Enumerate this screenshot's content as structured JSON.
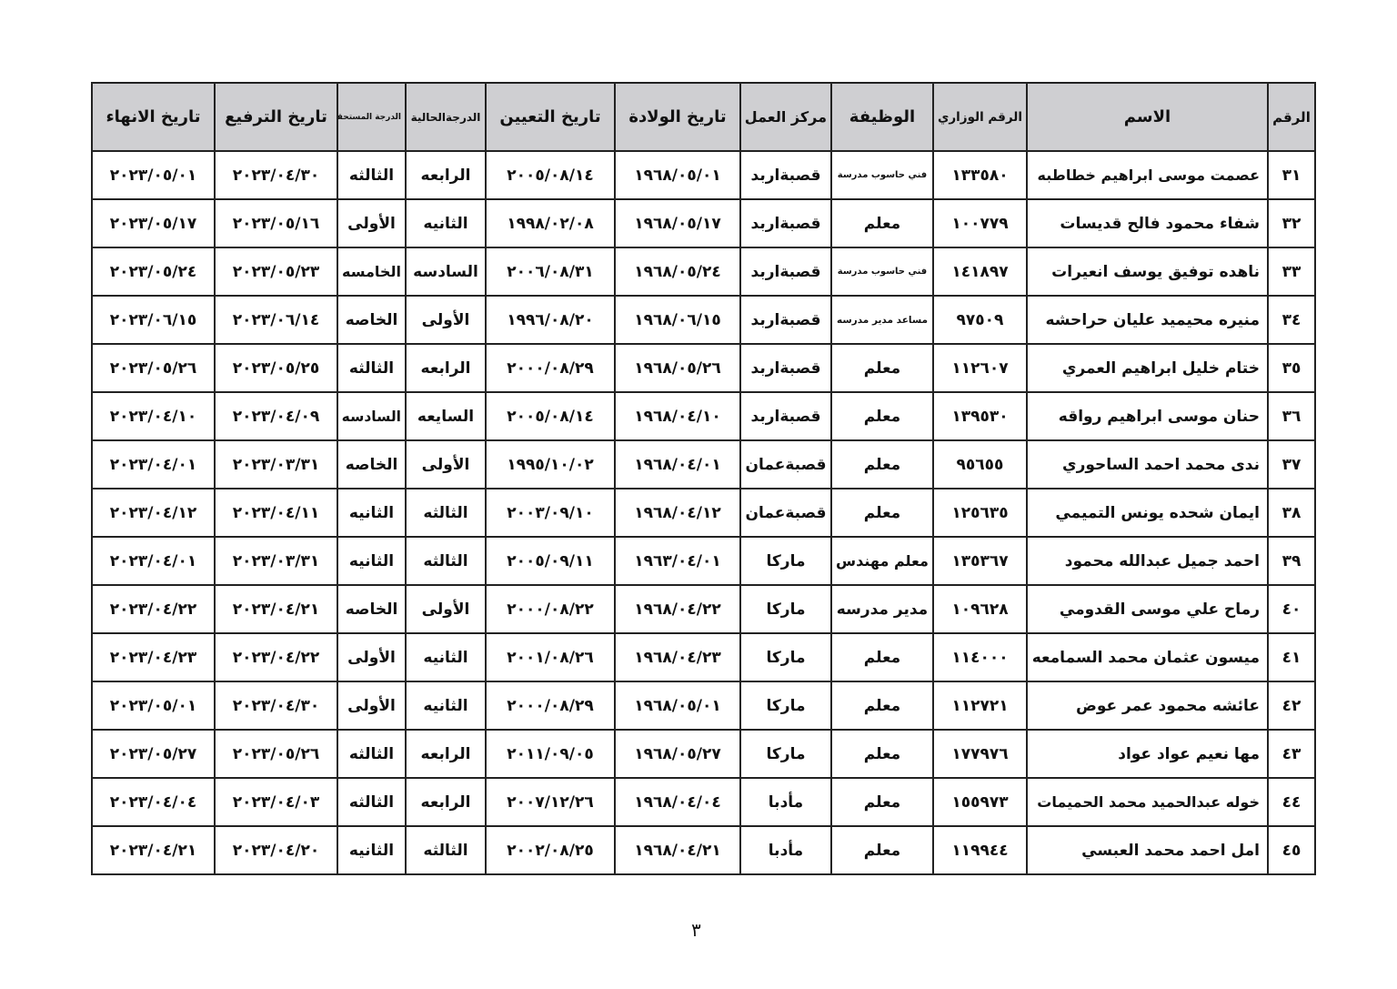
{
  "table": {
    "headers": [
      "الرقم",
      "الاسم",
      "الرقم الوزاري",
      "الوظيفة",
      "مركز العمل",
      "تاريخ الولادة",
      "تاريخ التعيين",
      "الدرجةالحالية",
      "الدرجة المستحقة",
      "تاريخ الترفيع",
      "تاريخ الانهاء"
    ],
    "rows": [
      [
        "٣١",
        "عصمت موسى ابراهيم خطاطبه",
        "١٣٣٥٨٠",
        "فني حاسوب مدرسة",
        "قصبةاربد",
        "١٩٦٨/٠٥/٠١",
        "٢٠٠٥/٠٨/١٤",
        "الرابعه",
        "الثالثه",
        "٢٠٢٣/٠٤/٣٠",
        "٢٠٢٣/٠٥/٠١"
      ],
      [
        "٣٢",
        "شفاء محمود فالح قديسات",
        "١٠٠٧٧٩",
        "معلم",
        "قصبةاربد",
        "١٩٦٨/٠٥/١٧",
        "١٩٩٨/٠٢/٠٨",
        "الثانيه",
        "الأولى",
        "٢٠٢٣/٠٥/١٦",
        "٢٠٢٣/٠٥/١٧"
      ],
      [
        "٣٣",
        "ناهده توفيق يوسف انعيرات",
        "١٤١٨٩٧",
        "فني حاسوب مدرسة",
        "قصبةاربد",
        "١٩٦٨/٠٥/٢٤",
        "٢٠٠٦/٠٨/٣١",
        "السادسه",
        "الخامسه",
        "٢٠٢٣/٠٥/٢٣",
        "٢٠٢٣/٠٥/٢٤"
      ],
      [
        "٣٤",
        "منيره محيميد عليان حراحشه",
        "٩٧٥٠٩",
        "مساعد مدير مدرسه",
        "قصبةاربد",
        "١٩٦٨/٠٦/١٥",
        "١٩٩٦/٠٨/٢٠",
        "الأولى",
        "الخاصه",
        "٢٠٢٣/٠٦/١٤",
        "٢٠٢٣/٠٦/١٥"
      ],
      [
        "٣٥",
        "ختام خليل ابراهيم العمري",
        "١١٢٦٠٧",
        "معلم",
        "قصبةاربد",
        "١٩٦٨/٠٥/٢٦",
        "٢٠٠٠/٠٨/٢٩",
        "الرابعه",
        "الثالثه",
        "٢٠٢٣/٠٥/٢٥",
        "٢٠٢٣/٠٥/٢٦"
      ],
      [
        "٣٦",
        "حنان موسى ابراهيم رواقه",
        "١٣٩٥٣٠",
        "معلم",
        "قصبةاربد",
        "١٩٦٨/٠٤/١٠",
        "٢٠٠٥/٠٨/١٤",
        "السايعه",
        "السادسه",
        "٢٠٢٣/٠٤/٠٩",
        "٢٠٢٣/٠٤/١٠"
      ],
      [
        "٣٧",
        "ندى محمد احمد الساحوري",
        "٩٥٦٥٥",
        "معلم",
        "قصبةعمان",
        "١٩٦٨/٠٤/٠١",
        "١٩٩٥/١٠/٠٢",
        "الأولى",
        "الخاصه",
        "٢٠٢٣/٠٣/٣١",
        "٢٠٢٣/٠٤/٠١"
      ],
      [
        "٣٨",
        "ايمان شحده يونس التميمي",
        "١٢٥٦٣٥",
        "معلم",
        "قصبةعمان",
        "١٩٦٨/٠٤/١٢",
        "٢٠٠٣/٠٩/١٠",
        "الثالثه",
        "الثانيه",
        "٢٠٢٣/٠٤/١١",
        "٢٠٢٣/٠٤/١٢"
      ],
      [
        "٣٩",
        "احمد جميل عبدالله محمود",
        "١٣٥٣٦٧",
        "معلم مهندس",
        "ماركا",
        "١٩٦٣/٠٤/٠١",
        "٢٠٠٥/٠٩/١١",
        "الثالثه",
        "الثانيه",
        "٢٠٢٣/٠٣/٣١",
        "٢٠٢٣/٠٤/٠١"
      ],
      [
        "٤٠",
        "رماح علي موسى القدومي",
        "١٠٩٦٢٨",
        "مدير مدرسه",
        "ماركا",
        "١٩٦٨/٠٤/٢٢",
        "٢٠٠٠/٠٨/٢٢",
        "الأولى",
        "الخاصه",
        "٢٠٢٣/٠٤/٢١",
        "٢٠٢٣/٠٤/٢٢"
      ],
      [
        "٤١",
        "ميسون عثمان محمد السمامعه",
        "١١٤٠٠٠",
        "معلم",
        "ماركا",
        "١٩٦٨/٠٤/٢٣",
        "٢٠٠١/٠٨/٢٦",
        "الثانيه",
        "الأولى",
        "٢٠٢٣/٠٤/٢٢",
        "٢٠٢٣/٠٤/٢٣"
      ],
      [
        "٤٢",
        "عائشه محمود عمر عوض",
        "١١٢٧٢١",
        "معلم",
        "ماركا",
        "١٩٦٨/٠٥/٠١",
        "٢٠٠٠/٠٨/٢٩",
        "الثانيه",
        "الأولى",
        "٢٠٢٣/٠٤/٣٠",
        "٢٠٢٣/٠٥/٠١"
      ],
      [
        "٤٣",
        "مها نعيم عواد عواد",
        "١٧٧٩٧٦",
        "معلم",
        "ماركا",
        "١٩٦٨/٠٥/٢٧",
        "٢٠١١/٠٩/٠٥",
        "الرابعه",
        "الثالثه",
        "٢٠٢٣/٠٥/٢٦",
        "٢٠٢٣/٠٥/٢٧"
      ],
      [
        "٤٤",
        "خوله عبدالحميد محمد الحميمات",
        "١٥٥٩٧٣",
        "معلم",
        "مأدبا",
        "١٩٦٨/٠٤/٠٤",
        "٢٠٠٧/١٢/٢٦",
        "الرابعه",
        "الثالثه",
        "٢٠٢٣/٠٤/٠٣",
        "٢٠٢٣/٠٤/٠٤"
      ],
      [
        "٤٥",
        "امل احمد محمد العبسي",
        "١١٩٩٤٤",
        "معلم",
        "مأدبا",
        "١٩٦٨/٠٤/٢١",
        "٢٠٠٢/٠٨/٢٥",
        "الثالثه",
        "الثانيه",
        "٢٠٢٣/٠٤/٢٠",
        "٢٠٢٣/٠٤/٢١"
      ]
    ]
  },
  "footer": {
    "page_number": "٣"
  }
}
